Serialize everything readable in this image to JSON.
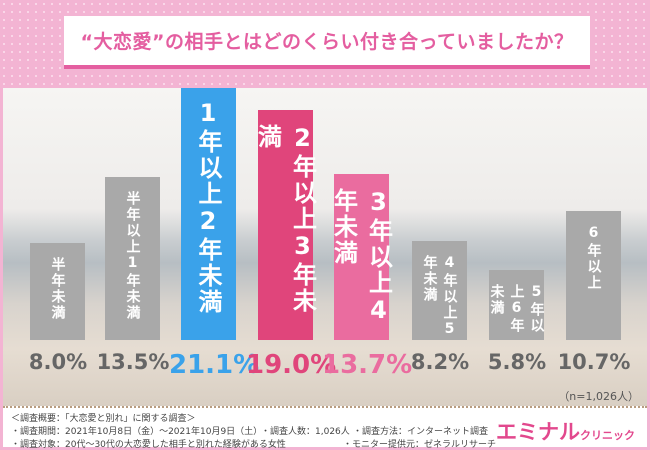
{
  "title": "“大恋愛”の相手とはどのくらい付き合っていましたか？",
  "chart_data": {
    "type": "bar",
    "title": "“大恋愛”の相手とはどのくらい付き合っていましたか？",
    "categories": [
      "半年未満",
      "半年以上1年未満",
      "1年以上2年未満",
      "2年以上3年未満",
      "3年以上4年未満",
      "4年以上5年未満",
      "5年以上6年未満",
      "6年以上"
    ],
    "values": [
      8.0,
      13.5,
      21.1,
      19.0,
      13.7,
      8.2,
      5.8,
      10.7
    ],
    "value_labels": [
      "8.0%",
      "13.5%",
      "21.1%",
      "19.0%",
      "13.7%",
      "8.2%",
      "5.8%",
      "10.7%"
    ],
    "colors": [
      "#a9a9a9",
      "#a9a9a9",
      "#3aa2ea",
      "#e0457b",
      "#ea6c9f",
      "#a9a9a9",
      "#a9a9a9",
      "#a9a9a9"
    ],
    "label_colors": [
      "#666666",
      "#666666",
      "#3aa2ea",
      "#e0457b",
      "#ea6c9f",
      "#666666",
      "#666666",
      "#666666"
    ],
    "ylim": [
      0,
      21.1
    ],
    "grid": false,
    "note": "（n=1,026人）"
  },
  "footer": {
    "overview": "＜調査概要：「大恋愛と別れ」に関する調査＞",
    "period": "・調査期間：2021年10月8日（金）〜2021年10月9日（土）",
    "count": "・調査人数：1,026人",
    "method": "・調査方法：インターネット調査",
    "target": "・調査対象：20代〜30代の大恋愛した相手と別れた経験がある女性",
    "provider": "・モニター提供元：ゼネラルリサーチ",
    "logo_main": "エミナル",
    "logo_sub": "クリニック"
  }
}
